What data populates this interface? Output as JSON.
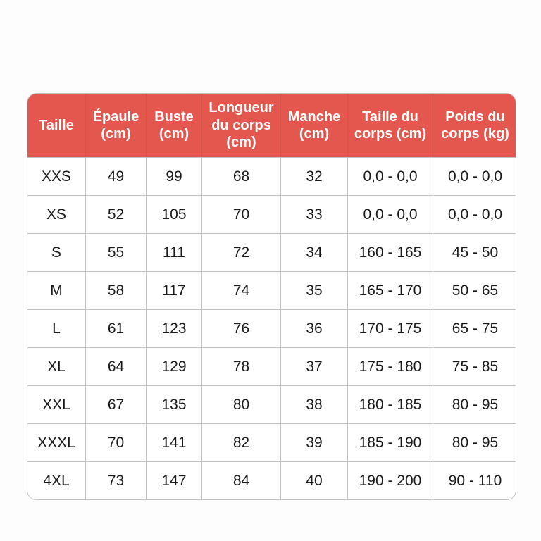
{
  "chart_data": {
    "type": "table",
    "columns": [
      "Taille",
      "Épaule (cm)",
      "Buste (cm)",
      "Longueur du corps (cm)",
      "Manche (cm)",
      "Taille du corps (cm)",
      "Poids du corps (kg)"
    ],
    "rows": [
      [
        "XXS",
        "49",
        "99",
        "68",
        "32",
        "0,0 - 0,0",
        "0,0 - 0,0"
      ],
      [
        "XS",
        "52",
        "105",
        "70",
        "33",
        "0,0 - 0,0",
        "0,0 - 0,0"
      ],
      [
        "S",
        "55",
        "111",
        "72",
        "34",
        "160 - 165",
        "45 - 50"
      ],
      [
        "M",
        "58",
        "117",
        "74",
        "35",
        "165 - 170",
        "50 - 65"
      ],
      [
        "L",
        "61",
        "123",
        "76",
        "36",
        "170 - 175",
        "65 - 75"
      ],
      [
        "XL",
        "64",
        "129",
        "78",
        "37",
        "175 - 180",
        "75 - 85"
      ],
      [
        "XXL",
        "67",
        "135",
        "80",
        "38",
        "180 - 185",
        "80 - 95"
      ],
      [
        "XXXL",
        "70",
        "141",
        "82",
        "39",
        "185 - 190",
        "80 - 95"
      ],
      [
        "4XL",
        "73",
        "147",
        "84",
        "40",
        "190 - 200",
        "90 - 110"
      ]
    ]
  },
  "colors": {
    "header_bg": "#e4574e",
    "header_text": "#ffffff",
    "grid_line": "#c2c2c2",
    "body_text": "#1a1a1c",
    "page_bg": "#fdfdfd"
  }
}
